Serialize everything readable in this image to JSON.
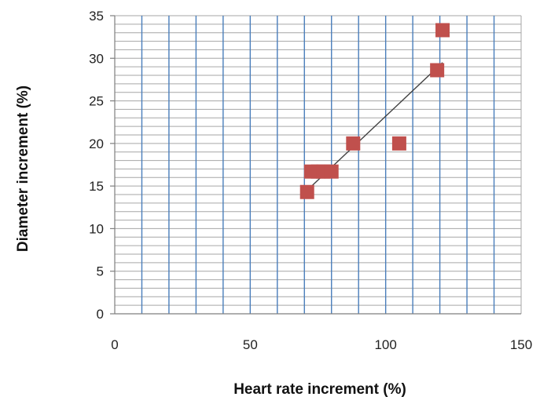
{
  "chart_data": {
    "type": "scatter",
    "title": "",
    "xlabel": "Heart rate increment (%)",
    "ylabel": "Diameter increment (%)",
    "xlim": [
      0,
      150
    ],
    "ylim": [
      0,
      35
    ],
    "x_ticks": [
      "0",
      "50",
      "100",
      "150"
    ],
    "y_ticks": [
      "0",
      "5",
      "10",
      "15",
      "20",
      "25",
      "30",
      "35"
    ],
    "grid": {
      "vertical_major_step": 10,
      "horizontal_minor_step": 1,
      "vertical_color": "#4a7ebb",
      "horizontal_color": "#a6a6a6"
    },
    "legend": "none",
    "series": [
      {
        "marker": "square",
        "color": "#c0504d",
        "points": [
          {
            "x": 71,
            "y": 14.3
          },
          {
            "x": 72.5,
            "y": 16.7
          },
          {
            "x": 75,
            "y": 16.7
          },
          {
            "x": 77,
            "y": 16.7
          },
          {
            "x": 80,
            "y": 16.7
          },
          {
            "x": 88,
            "y": 20
          },
          {
            "x": 105,
            "y": 20
          },
          {
            "x": 119,
            "y": 28.6
          },
          {
            "x": 121,
            "y": 33.3
          }
        ]
      }
    ],
    "trendline": {
      "color": "#404040",
      "start": {
        "x": 71,
        "y": 14.5
      },
      "end": {
        "x": 121,
        "y": 29.5
      }
    }
  }
}
